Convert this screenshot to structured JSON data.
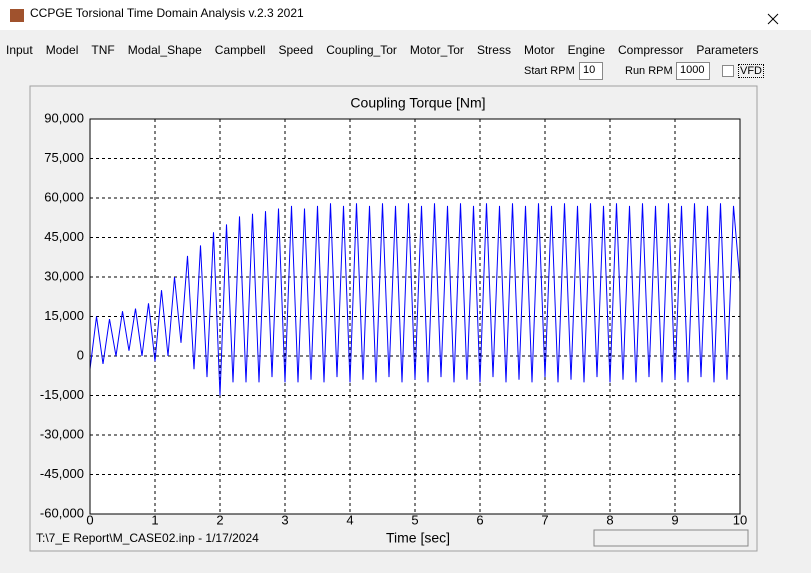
{
  "window": {
    "title": "CCPGE Torsional Time Domain Analysis v.2.3 2021"
  },
  "menu": [
    "Input",
    "Model",
    "TNF",
    "Modal_Shape",
    "Campbell",
    "Speed",
    "Coupling_Tor",
    "Motor_Tor",
    "Stress",
    "Motor",
    "Engine",
    "Compressor",
    "Parameters"
  ],
  "toolbar": {
    "start_rpm_label": "Start RPM",
    "start_rpm": 10,
    "run_rpm_label": "Run RPM",
    "run_rpm": 1000,
    "vfd_label": "VFD"
  },
  "status": {
    "file": "T:\\7_E Report\\M_CASE02.inp - 1/17/2024"
  },
  "chart_data": {
    "type": "line",
    "title": "Coupling Torque [Nm]",
    "x_label": "Time [sec]",
    "color": "#0000ff",
    "grid": true,
    "x": [
      0,
      0.1,
      0.2,
      0.3,
      0.4,
      0.5,
      0.6,
      0.7,
      0.8,
      0.9,
      1,
      1.1,
      1.2,
      1.3,
      1.4,
      1.5,
      1.6,
      1.7,
      1.8,
      1.9,
      2,
      2.1,
      2.2,
      2.3,
      2.4,
      2.5,
      2.6,
      2.7,
      2.8,
      2.9,
      3,
      3.1,
      3.2,
      3.3,
      3.4,
      3.5,
      3.6,
      3.7,
      3.8,
      3.9,
      4,
      4.1,
      4.2,
      4.3,
      4.4,
      4.5,
      4.6,
      4.7,
      4.8,
      4.9,
      5,
      5.1,
      5.2,
      5.3,
      5.4,
      5.5,
      5.6,
      5.7,
      5.8,
      5.9,
      6,
      6.1,
      6.2,
      6.3,
      6.4,
      6.5,
      6.6,
      6.7,
      6.8,
      6.9,
      7,
      7.1,
      7.2,
      7.3,
      7.4,
      7.5,
      7.6,
      7.7,
      7.8,
      7.9,
      8,
      8.1,
      8.2,
      8.3,
      8.4,
      8.5,
      8.6,
      8.7,
      8.8,
      8.9,
      9,
      9.1,
      9.2,
      9.3,
      9.4,
      9.5,
      9.6,
      9.7,
      9.8,
      9.9,
      10
    ],
    "values": [
      -5000,
      15000,
      -3000,
      14000,
      0,
      17000,
      2000,
      18000,
      0,
      20000,
      -2000,
      25000,
      0,
      30000,
      5000,
      38000,
      -5000,
      42000,
      -8000,
      47000,
      -15000,
      50000,
      -10000,
      53000,
      -10000,
      54000,
      -10000,
      55000,
      -8000,
      56000,
      -10000,
      57000,
      -10000,
      56000,
      -9000,
      57000,
      -10000,
      58000,
      -8000,
      57000,
      -10000,
      58000,
      -9000,
      57000,
      -10000,
      58000,
      -8000,
      57000,
      -10000,
      58000,
      -9000,
      57000,
      -10000,
      58000,
      -8000,
      57000,
      -10000,
      58000,
      -9000,
      57000,
      -10000,
      58000,
      -8000,
      57000,
      -10000,
      58000,
      -9000,
      57000,
      -10000,
      58000,
      -8000,
      57000,
      -10000,
      58000,
      -9000,
      57000,
      -10000,
      58000,
      -8000,
      57000,
      -10000,
      58000,
      -9000,
      57000,
      -10000,
      58000,
      -8000,
      57000,
      -10000,
      58000,
      -9000,
      57000,
      -10000,
      58000,
      -8000,
      57000,
      -10000,
      58000,
      -9000,
      57000,
      28000
    ],
    "xlim": [
      0,
      10
    ],
    "xticks": [
      0,
      1,
      2,
      3,
      4,
      5,
      6,
      7,
      8,
      9,
      10
    ],
    "ylim": [
      -60000,
      90000
    ],
    "yticks": [
      {
        "value": -60000,
        "label": "-60,000"
      },
      {
        "value": -45000,
        "label": "-45,000"
      },
      {
        "value": -30000,
        "label": "-30,000"
      },
      {
        "value": -15000,
        "label": "-15,000"
      },
      0,
      {
        "value": 15000,
        "label": "15,000"
      },
      {
        "value": 30000,
        "label": "30,000"
      },
      {
        "value": 45000,
        "label": "45,000"
      },
      {
        "value": 60000,
        "label": "60,000"
      },
      {
        "value": 75000,
        "label": "75,000"
      },
      {
        "value": 90000,
        "label": "90,000"
      }
    ]
  }
}
